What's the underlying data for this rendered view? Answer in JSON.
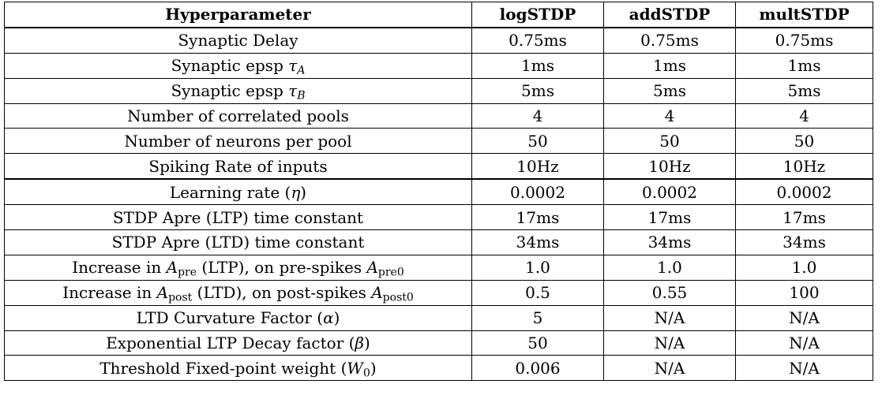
{
  "headers": [
    "Hyperparameter",
    "logSTDP",
    "addSTDP",
    "multSTDP"
  ],
  "rows": [
    {
      "label": "Synaptic Delay",
      "values": [
        "0.75ms",
        "0.75ms",
        "0.75ms"
      ]
    },
    {
      "label_pre": "Synaptic epsp ",
      "label_sym": "τ",
      "label_sub": "A",
      "label_post": "",
      "values": [
        "1ms",
        "1ms",
        "1ms"
      ]
    },
    {
      "label_pre": "Synaptic epsp ",
      "label_sym": "τ",
      "label_sub": "B",
      "label_post": "",
      "values": [
        "5ms",
        "5ms",
        "5ms"
      ]
    },
    {
      "label": "Number of correlated pools",
      "values": [
        "4",
        "4",
        "4"
      ]
    },
    {
      "label": "Number of neurons per pool",
      "values": [
        "50",
        "50",
        "50"
      ]
    },
    {
      "label": "Spiking Rate of inputs",
      "values": [
        "10Hz",
        "10Hz",
        "10Hz"
      ]
    },
    {
      "label_pre": "Learning rate (",
      "label_sym": "η",
      "label_sub": "",
      "label_post": ")",
      "values": [
        "0.0002",
        "0.0002",
        "0.0002"
      ]
    },
    {
      "label": "STDP Apre (LTP) time constant",
      "values": [
        "17ms",
        "17ms",
        "17ms"
      ]
    },
    {
      "label": "STDP Apre (LTD) time constant",
      "values": [
        "34ms",
        "34ms",
        "34ms"
      ]
    },
    {
      "label_pre": "Increase in ",
      "label_sym": "A",
      "label_sub": "pre",
      "label_mid": " (LTP), on pre-spikes ",
      "label_sym2": "A",
      "label_sub2": "pre0",
      "values": [
        "1.0",
        "1.0",
        "1.0"
      ]
    },
    {
      "label_pre": "Increase in ",
      "label_sym": "A",
      "label_sub": "post",
      "label_mid": " (LTD), on post-spikes ",
      "label_sym2": "A",
      "label_sub2": "post0",
      "values": [
        "0.5",
        "0.55",
        "100"
      ]
    },
    {
      "label_pre": "LTD Curvature Factor (",
      "label_sym": "α",
      "label_sub": "",
      "label_post": ")",
      "values": [
        "5",
        "N/A",
        "N/A"
      ]
    },
    {
      "label_pre": "Exponential LTP Decay factor (",
      "label_sym": "β",
      "label_sub": "",
      "label_post": ")",
      "values": [
        "50",
        "N/A",
        "N/A"
      ]
    },
    {
      "label_pre": "Threshold Fixed-point weight (",
      "label_sym": "W",
      "label_sub": "0",
      "label_post": ")",
      "values": [
        "0.006",
        "N/A",
        "N/A"
      ]
    }
  ]
}
